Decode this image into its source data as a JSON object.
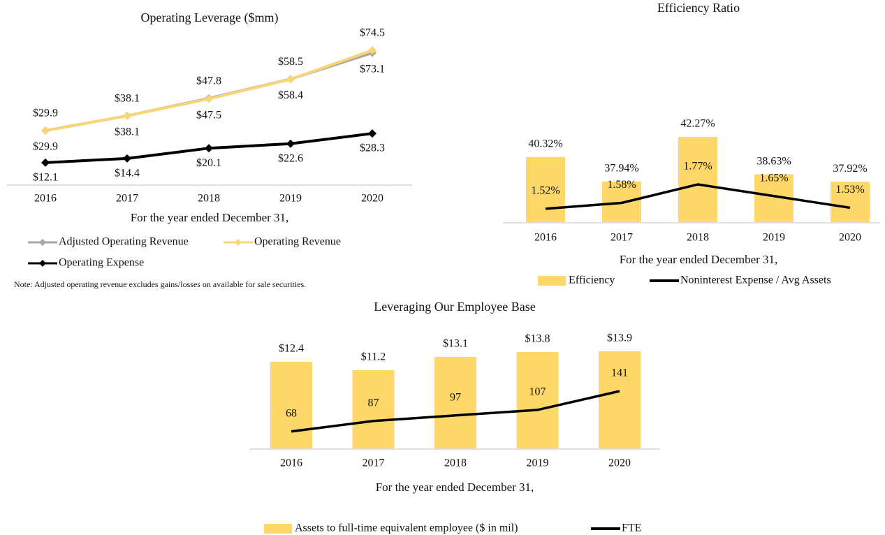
{
  "chart_data": [
    {
      "type": "line",
      "title": "Operating Leverage ($mm)",
      "categories": [
        "2016",
        "2017",
        "2018",
        "2019",
        "2020"
      ],
      "x_label": "For the year ended December 31,",
      "series": [
        {
          "name": "Adjusted Operating Revenue",
          "color": "#a6a6a6",
          "label_color": "#8c8c8c",
          "values": [
            29.9,
            38.1,
            47.8,
            58.5,
            73.1
          ],
          "value_labels": [
            "$29.9",
            "$38.1",
            "$47.8",
            "$58.5",
            "$73.1"
          ]
        },
        {
          "name": "Operating Revenue",
          "color": "#f8d677",
          "label_color": "#c9a24c",
          "values": [
            29.9,
            38.1,
            47.5,
            58.4,
            74.5
          ],
          "value_labels": [
            "$29.9",
            "$38.1",
            "$47.5",
            "$58.4",
            "$74.5"
          ]
        },
        {
          "name": "Operating Expense",
          "color": "#000000",
          "label_color": "#000000",
          "values": [
            12.1,
            14.4,
            20.1,
            22.6,
            28.3
          ],
          "value_labels": [
            "$12.1",
            "$14.4",
            "$20.1",
            "$22.6",
            "$28.3"
          ]
        }
      ],
      "note": "Note: Adjusted operating revenue excludes gains/losses on available for sale securities."
    },
    {
      "type": "bar",
      "title": "Efficiency Ratio",
      "categories": [
        "2016",
        "2017",
        "2018",
        "2019",
        "2020"
      ],
      "x_label": "For the year ended December 31,",
      "series": [
        {
          "name": "Efficiency",
          "type": "bar",
          "color": "#fdd868",
          "values": [
            40.32,
            37.94,
            42.27,
            38.63,
            37.92
          ],
          "value_labels": [
            "40.32%",
            "37.94%",
            "42.27%",
            "38.63%",
            "37.92%"
          ]
        },
        {
          "name": "Noninterest Expense / Avg Assets",
          "type": "line",
          "axis": "y2",
          "color": "#000000",
          "values": [
            1.52,
            1.58,
            1.77,
            1.65,
            1.53
          ],
          "value_labels": [
            "1.52%",
            "1.58%",
            "1.77%",
            "1.65%",
            "1.53%"
          ]
        }
      ]
    },
    {
      "type": "bar",
      "title": "Leveraging Our Employee Base",
      "categories": [
        "2016",
        "2017",
        "2018",
        "2019",
        "2020"
      ],
      "x_label": "For the year ended December 31,",
      "series": [
        {
          "name": "Assets to full-time equivalent employee ($ in mil)",
          "type": "bar",
          "color": "#fdd868",
          "values": [
            12.4,
            11.2,
            13.1,
            13.8,
            13.9
          ],
          "value_labels": [
            "$12.4",
            "$11.2",
            "$13.1",
            "$13.8",
            "$13.9"
          ]
        },
        {
          "name": "FTE",
          "type": "line",
          "axis": "y2",
          "color": "#000000",
          "values": [
            68,
            87,
            97,
            107,
            141
          ]
        }
      ]
    }
  ]
}
